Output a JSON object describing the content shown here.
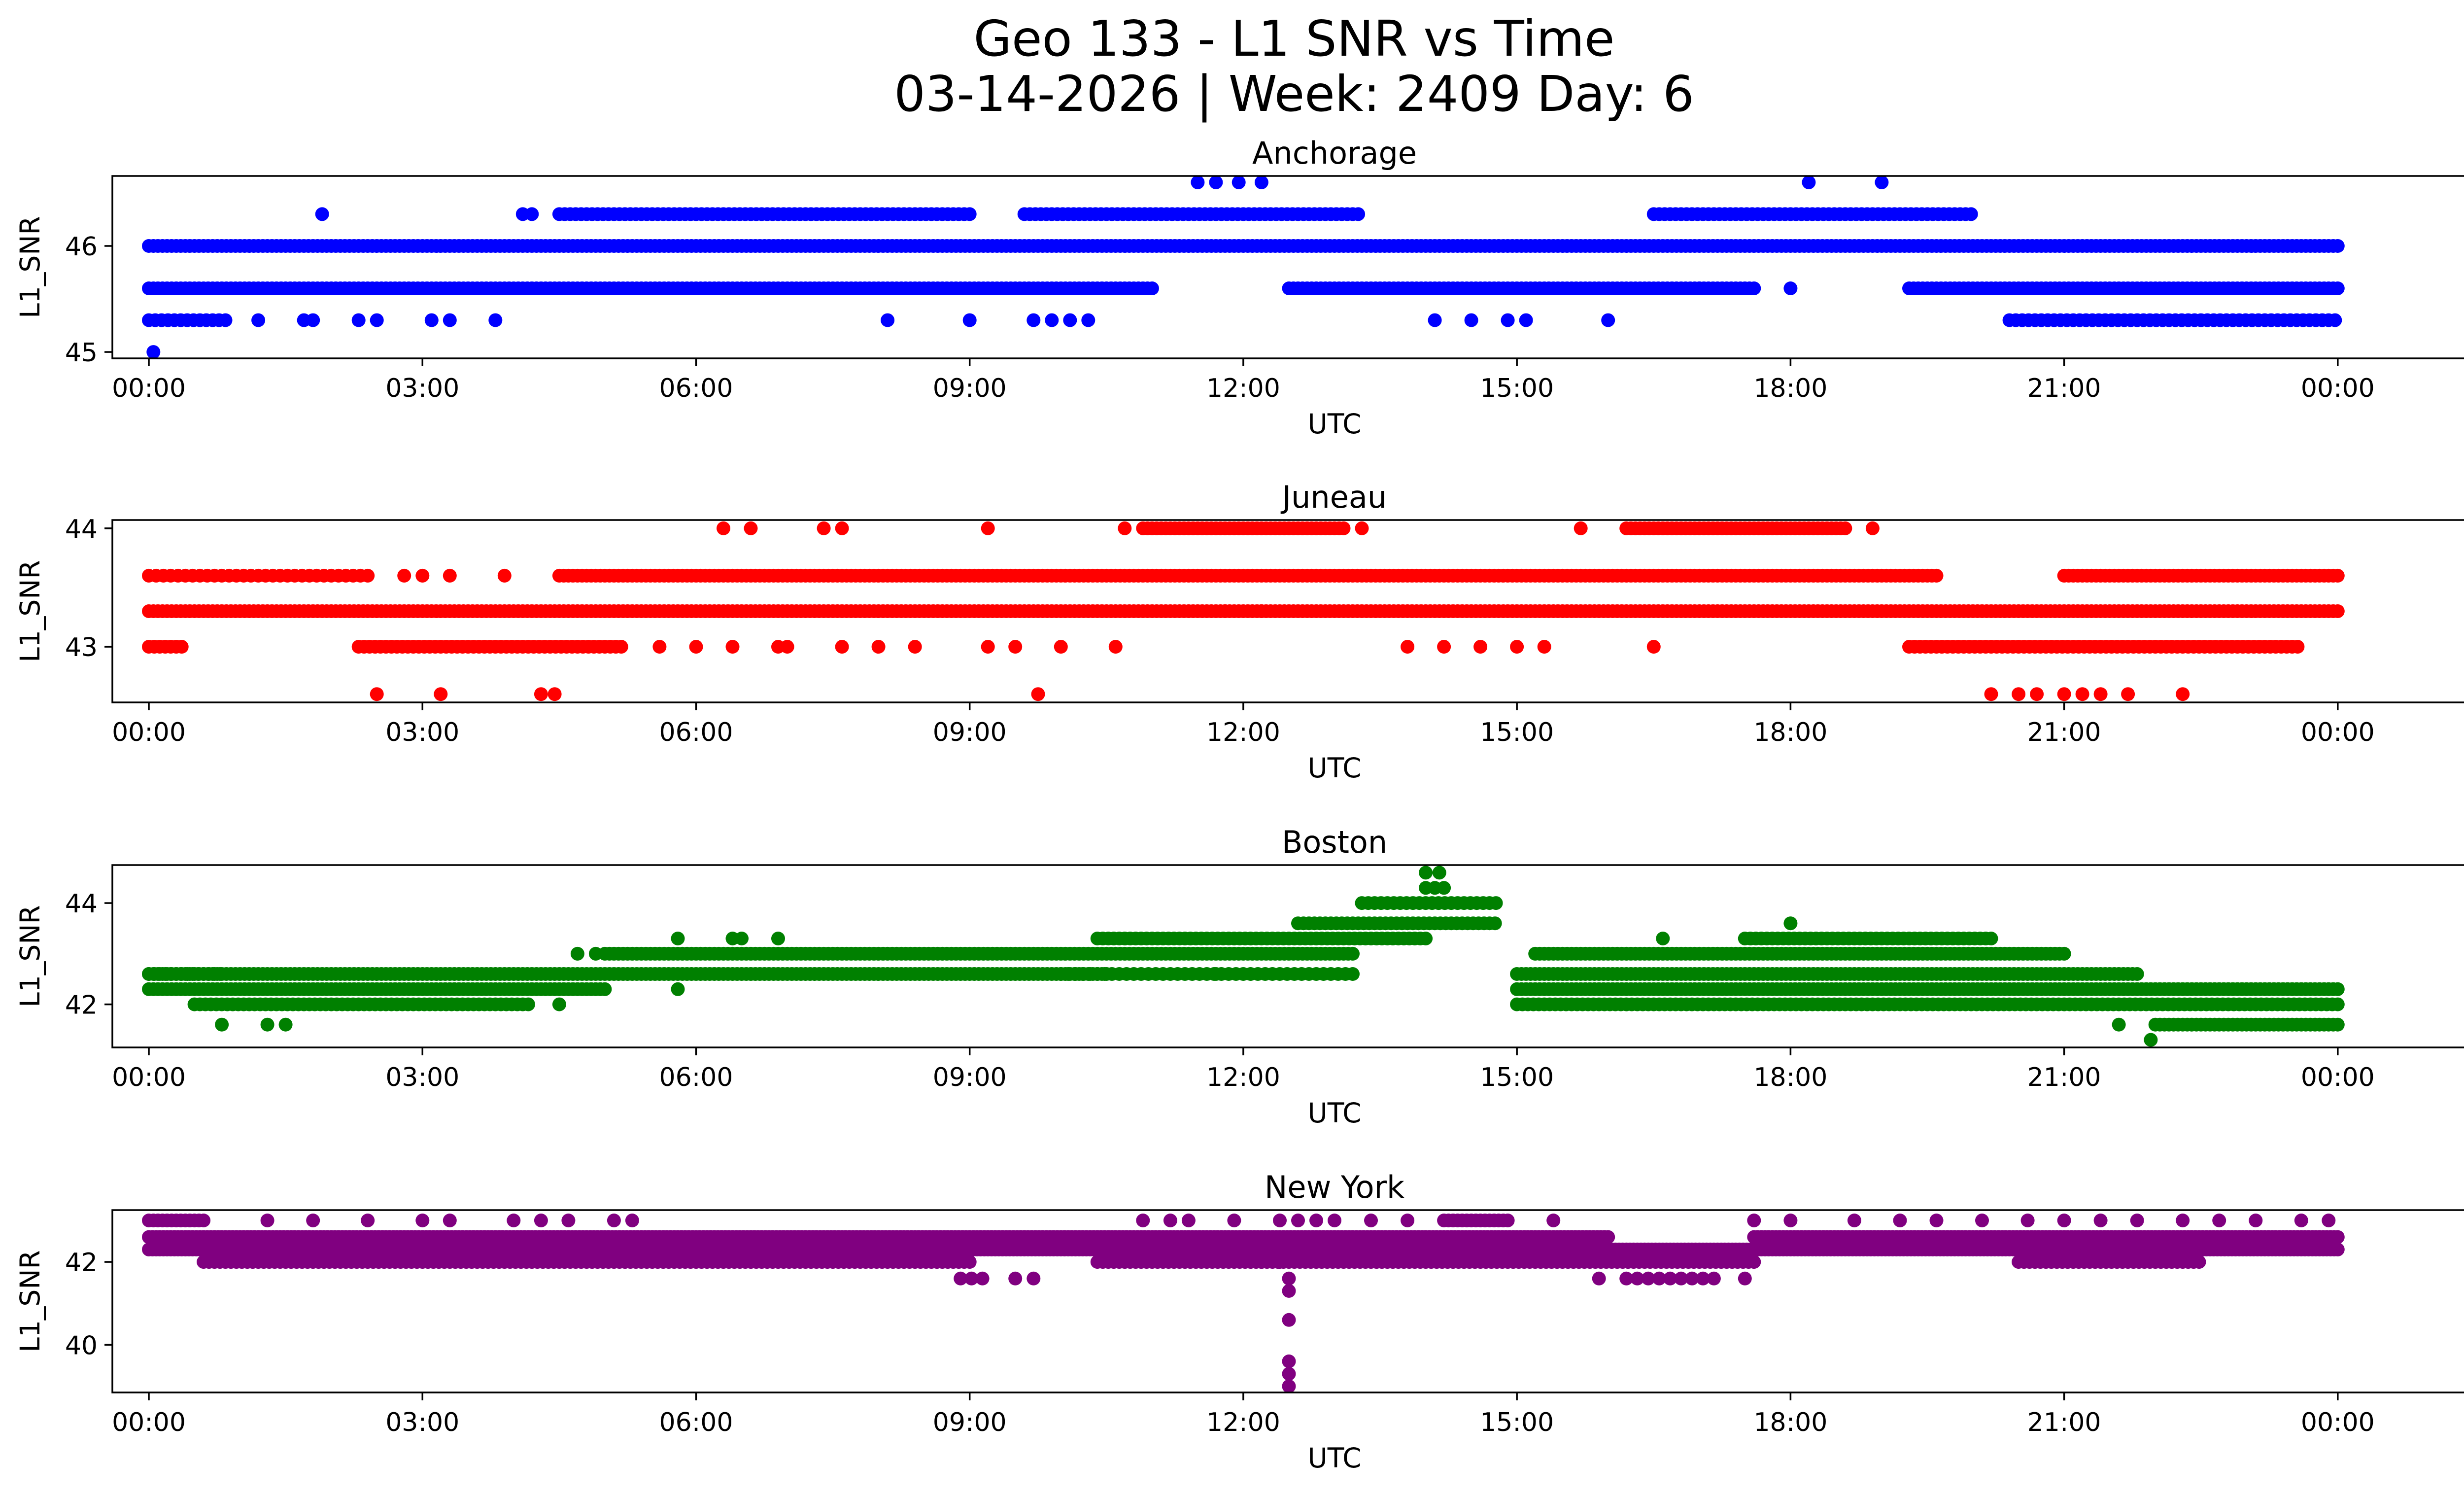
{
  "figure": {
    "title_line1": "Geo 133 - L1 SNR vs Time",
    "title_line2": "03-14-2026 | Week: 2409 Day: 6"
  },
  "chart_data": [
    {
      "type": "scatter",
      "title": "Anchorage",
      "xlabel": "UTC",
      "ylabel": "L1_SNR",
      "color": "#0000ff",
      "xlim": [
        -0.4,
        26.4
      ],
      "ylim": [
        44.94,
        46.66
      ],
      "x_ticks": [
        0,
        3,
        6,
        9,
        12,
        15,
        18,
        21,
        24
      ],
      "x_tick_labels": [
        "00:00",
        "03:00",
        "06:00",
        "09:00",
        "12:00",
        "15:00",
        "18:00",
        "21:00",
        "00:00"
      ],
      "y_ticks": [
        45,
        46
      ],
      "y_tick_labels": [
        "45",
        "46"
      ],
      "bands": [
        {
          "y": 46.0,
          "ranges": [
            [
              0.0,
              24.0
            ]
          ],
          "missing": [],
          "step": 0.05
        },
        {
          "y": 45.6,
          "ranges": [
            [
              0.0,
              11.0
            ],
            [
              12.5,
              17.6
            ],
            [
              19.3,
              24.0
            ]
          ],
          "missing": [],
          "step": 0.05
        },
        {
          "y": 46.3,
          "ranges": [
            [
              4.5,
              9.0
            ],
            [
              9.6,
              13.3
            ],
            [
              16.5,
              20.0
            ]
          ],
          "missing": [],
          "step": 0.06
        },
        {
          "y": 45.3,
          "ranges": [
            [
              0.0,
              0.9
            ],
            [
              20.4,
              24.0
            ]
          ],
          "missing": [],
          "step": 0.07
        }
      ],
      "points": [
        {
          "x": 0.05,
          "y": 45.0
        },
        {
          "x": 1.9,
          "y": 46.3
        },
        {
          "x": 4.1,
          "y": 46.3
        },
        {
          "x": 4.2,
          "y": 46.3
        },
        {
          "x": 1.2,
          "y": 45.3
        },
        {
          "x": 1.7,
          "y": 45.3
        },
        {
          "x": 1.8,
          "y": 45.3
        },
        {
          "x": 2.3,
          "y": 45.3
        },
        {
          "x": 2.5,
          "y": 45.3
        },
        {
          "x": 3.1,
          "y": 45.3
        },
        {
          "x": 3.3,
          "y": 45.3
        },
        {
          "x": 3.8,
          "y": 45.3
        },
        {
          "x": 8.1,
          "y": 45.3
        },
        {
          "x": 9.0,
          "y": 45.3
        },
        {
          "x": 9.7,
          "y": 45.3
        },
        {
          "x": 9.9,
          "y": 45.3
        },
        {
          "x": 10.1,
          "y": 45.3
        },
        {
          "x": 10.3,
          "y": 45.3
        },
        {
          "x": 14.1,
          "y": 45.3
        },
        {
          "x": 14.5,
          "y": 45.3
        },
        {
          "x": 14.9,
          "y": 45.3
        },
        {
          "x": 15.1,
          "y": 45.3
        },
        {
          "x": 16.0,
          "y": 45.3
        },
        {
          "x": 11.5,
          "y": 46.6
        },
        {
          "x": 11.7,
          "y": 46.6
        },
        {
          "x": 11.95,
          "y": 46.6
        },
        {
          "x": 12.2,
          "y": 46.6
        },
        {
          "x": 18.2,
          "y": 46.6
        },
        {
          "x": 19.0,
          "y": 46.6
        },
        {
          "x": 17.0,
          "y": 45.6
        },
        {
          "x": 18.0,
          "y": 45.6
        }
      ]
    },
    {
      "type": "scatter",
      "title": "Juneau",
      "xlabel": "UTC",
      "ylabel": "L1_SNR",
      "color": "#ff0000",
      "xlim": [
        -0.4,
        26.4
      ],
      "ylim": [
        42.53,
        44.07
      ],
      "x_ticks": [
        0,
        3,
        6,
        9,
        12,
        15,
        18,
        21,
        24
      ],
      "x_tick_labels": [
        "00:00",
        "03:00",
        "06:00",
        "09:00",
        "12:00",
        "15:00",
        "18:00",
        "21:00",
        "00:00"
      ],
      "y_ticks": [
        43,
        44
      ],
      "y_tick_labels": [
        "43",
        "44"
      ],
      "bands": [
        {
          "y": 43.3,
          "ranges": [
            [
              0.0,
              24.0
            ]
          ],
          "missing": [],
          "step": 0.05
        },
        {
          "y": 43.6,
          "ranges": [
            [
              4.5,
              19.6
            ],
            [
              21.0,
              24.0
            ]
          ],
          "missing": [],
          "step": 0.05
        },
        {
          "y": 43.0,
          "ranges": [
            [
              0.0,
              0.4
            ],
            [
              2.3,
              5.2
            ],
            [
              19.3,
              23.6
            ]
          ],
          "missing": [],
          "step": 0.06
        },
        {
          "y": 44.0,
          "ranges": [
            [
              10.9,
              13.1
            ],
            [
              16.2,
              18.6
            ]
          ],
          "missing": [],
          "step": 0.05
        },
        {
          "y": 43.6,
          "ranges": [
            [
              0.0,
              2.4
            ]
          ],
          "missing": [],
          "step": 0.08
        }
      ],
      "points": [
        {
          "x": 2.5,
          "y": 42.6
        },
        {
          "x": 3.2,
          "y": 42.6
        },
        {
          "x": 4.3,
          "y": 42.6
        },
        {
          "x": 4.45,
          "y": 42.6
        },
        {
          "x": 9.75,
          "y": 42.6
        },
        {
          "x": 20.2,
          "y": 42.6
        },
        {
          "x": 20.5,
          "y": 42.6
        },
        {
          "x": 20.7,
          "y": 42.6
        },
        {
          "x": 21.0,
          "y": 42.6
        },
        {
          "x": 21.2,
          "y": 42.6
        },
        {
          "x": 21.4,
          "y": 42.6
        },
        {
          "x": 21.7,
          "y": 42.6
        },
        {
          "x": 22.3,
          "y": 42.6
        },
        {
          "x": 6.3,
          "y": 44.0
        },
        {
          "x": 6.6,
          "y": 44.0
        },
        {
          "x": 7.4,
          "y": 44.0
        },
        {
          "x": 7.6,
          "y": 44.0
        },
        {
          "x": 9.2,
          "y": 44.0
        },
        {
          "x": 10.7,
          "y": 44.0
        },
        {
          "x": 13.3,
          "y": 44.0
        },
        {
          "x": 15.7,
          "y": 44.0
        },
        {
          "x": 18.9,
          "y": 44.0
        },
        {
          "x": 2.8,
          "y": 43.6
        },
        {
          "x": 3.0,
          "y": 43.6
        },
        {
          "x": 3.3,
          "y": 43.6
        },
        {
          "x": 3.9,
          "y": 43.6
        },
        {
          "x": 5.6,
          "y": 43.0
        },
        {
          "x": 6.0,
          "y": 43.0
        },
        {
          "x": 6.4,
          "y": 43.0
        },
        {
          "x": 6.9,
          "y": 43.0
        },
        {
          "x": 7.0,
          "y": 43.0
        },
        {
          "x": 7.6,
          "y": 43.0
        },
        {
          "x": 8.0,
          "y": 43.0
        },
        {
          "x": 8.4,
          "y": 43.0
        },
        {
          "x": 9.2,
          "y": 43.0
        },
        {
          "x": 9.5,
          "y": 43.0
        },
        {
          "x": 10.0,
          "y": 43.0
        },
        {
          "x": 10.6,
          "y": 43.0
        },
        {
          "x": 13.8,
          "y": 43.0
        },
        {
          "x": 14.2,
          "y": 43.0
        },
        {
          "x": 14.6,
          "y": 43.0
        },
        {
          "x": 15.0,
          "y": 43.0
        },
        {
          "x": 15.3,
          "y": 43.0
        },
        {
          "x": 16.5,
          "y": 43.0
        },
        {
          "x": 11.8,
          "y": 43.3
        },
        {
          "x": 12.2,
          "y": 43.3
        }
      ]
    },
    {
      "type": "scatter",
      "title": "Boston",
      "xlabel": "UTC",
      "ylabel": "L1_SNR",
      "color": "#008000",
      "xlim": [
        -0.4,
        26.4
      ],
      "ylim": [
        41.15,
        44.75
      ],
      "x_ticks": [
        0,
        3,
        6,
        9,
        12,
        15,
        18,
        21,
        24
      ],
      "x_tick_labels": [
        "00:00",
        "03:00",
        "06:00",
        "09:00",
        "12:00",
        "15:00",
        "18:00",
        "21:00",
        "00:00"
      ],
      "y_ticks": [
        42,
        44
      ],
      "y_tick_labels": [
        "42",
        "44"
      ],
      "bands": [
        {
          "y": 42.3,
          "ranges": [
            [
              0.0,
              5.0
            ],
            [
              15.0,
              24.0
            ]
          ],
          "missing": [],
          "step": 0.05
        },
        {
          "y": 42.6,
          "ranges": [
            [
              0.0,
              10.5
            ],
            [
              15.0,
              21.8
            ]
          ],
          "missing": [],
          "step": 0.05
        },
        {
          "y": 42.0,
          "ranges": [
            [
              0.5,
              4.2
            ],
            [
              15.0,
              24.0
            ]
          ],
          "missing": [],
          "step": 0.06
        },
        {
          "y": 43.0,
          "ranges": [
            [
              5.0,
              13.2
            ],
            [
              15.2,
              21.0
            ]
          ],
          "missing": [],
          "step": 0.05
        },
        {
          "y": 43.3,
          "ranges": [
            [
              10.4,
              14.0
            ],
            [
              17.5,
              20.2
            ]
          ],
          "missing": [],
          "step": 0.06
        },
        {
          "y": 42.6,
          "ranges": [
            [
              10.0,
              13.2
            ]
          ],
          "missing": [],
          "step": 0.08
        },
        {
          "y": 43.6,
          "ranges": [
            [
              12.6,
              14.8
            ]
          ],
          "missing": [],
          "step": 0.06
        },
        {
          "y": 44.0,
          "ranges": [
            [
              13.3,
              14.8
            ]
          ],
          "missing": [],
          "step": 0.07
        },
        {
          "y": 41.6,
          "ranges": [
            [
              22.0,
              24.0
            ]
          ],
          "missing": [],
          "step": 0.05
        },
        {
          "y": 42.6,
          "ranges": [
            [
              0.0,
              0.8
            ]
          ],
          "missing": [],
          "step": 0.06
        }
      ],
      "points": [
        {
          "x": 0.8,
          "y": 41.6
        },
        {
          "x": 1.3,
          "y": 41.6
        },
        {
          "x": 1.5,
          "y": 41.6
        },
        {
          "x": 21.6,
          "y": 41.6
        },
        {
          "x": 21.95,
          "y": 41.3
        },
        {
          "x": 14.0,
          "y": 44.3
        },
        {
          "x": 14.1,
          "y": 44.3
        },
        {
          "x": 14.2,
          "y": 44.3
        },
        {
          "x": 14.0,
          "y": 44.6
        },
        {
          "x": 14.15,
          "y": 44.6
        },
        {
          "x": 5.8,
          "y": 43.3
        },
        {
          "x": 6.4,
          "y": 43.3
        },
        {
          "x": 6.5,
          "y": 43.3
        },
        {
          "x": 6.9,
          "y": 43.3
        },
        {
          "x": 16.6,
          "y": 43.3
        },
        {
          "x": 18.0,
          "y": 43.6
        },
        {
          "x": 4.7,
          "y": 43.0
        },
        {
          "x": 4.9,
          "y": 43.0
        },
        {
          "x": 11.7,
          "y": 42.6
        },
        {
          "x": 5.8,
          "y": 42.3
        },
        {
          "x": 4.5,
          "y": 42.0
        }
      ]
    },
    {
      "type": "scatter",
      "title": "New York",
      "xlabel": "UTC",
      "ylabel": "L1_SNR",
      "color": "#800080",
      "xlim": [
        -0.4,
        26.4
      ],
      "ylim": [
        38.85,
        43.25
      ],
      "x_ticks": [
        0,
        3,
        6,
        9,
        12,
        15,
        18,
        21,
        24
      ],
      "x_tick_labels": [
        "00:00",
        "03:00",
        "06:00",
        "09:00",
        "12:00",
        "15:00",
        "18:00",
        "21:00",
        "00:00"
      ],
      "y_ticks": [
        40,
        42
      ],
      "y_tick_labels": [
        "40",
        "42"
      ],
      "bands": [
        {
          "y": 42.6,
          "ranges": [
            [
              0.0,
              16.0
            ],
            [
              17.6,
              24.0
            ]
          ],
          "missing": [],
          "step": 0.04
        },
        {
          "y": 42.3,
          "ranges": [
            [
              0.0,
              24.0
            ]
          ],
          "missing": [],
          "step": 0.04
        },
        {
          "y": 42.0,
          "ranges": [
            [
              0.6,
              9.0
            ],
            [
              10.4,
              17.6
            ],
            [
              20.5,
              22.5
            ]
          ],
          "missing": [],
          "step": 0.06
        },
        {
          "y": 43.0,
          "ranges": [
            [
              0.0,
              0.6
            ],
            [
              14.2,
              14.9
            ]
          ],
          "missing": [],
          "step": 0.05
        },
        {
          "y": 41.6,
          "ranges": [
            [
              8.9,
              9.2
            ],
            [
              16.2,
              17.2
            ]
          ],
          "missing": [],
          "step": 0.12
        }
      ],
      "points": [
        {
          "x": 1.3,
          "y": 43.0
        },
        {
          "x": 1.8,
          "y": 43.0
        },
        {
          "x": 2.4,
          "y": 43.0
        },
        {
          "x": 3.0,
          "y": 43.0
        },
        {
          "x": 3.3,
          "y": 43.0
        },
        {
          "x": 4.0,
          "y": 43.0
        },
        {
          "x": 4.3,
          "y": 43.0
        },
        {
          "x": 4.6,
          "y": 43.0
        },
        {
          "x": 5.1,
          "y": 43.0
        },
        {
          "x": 5.3,
          "y": 43.0
        },
        {
          "x": 10.9,
          "y": 43.0
        },
        {
          "x": 11.2,
          "y": 43.0
        },
        {
          "x": 11.4,
          "y": 43.0
        },
        {
          "x": 11.9,
          "y": 43.0
        },
        {
          "x": 12.4,
          "y": 43.0
        },
        {
          "x": 12.6,
          "y": 43.0
        },
        {
          "x": 12.8,
          "y": 43.0
        },
        {
          "x": 13.0,
          "y": 43.0
        },
        {
          "x": 13.4,
          "y": 43.0
        },
        {
          "x": 13.8,
          "y": 43.0
        },
        {
          "x": 15.4,
          "y": 43.0
        },
        {
          "x": 17.6,
          "y": 43.0
        },
        {
          "x": 18.0,
          "y": 43.0
        },
        {
          "x": 18.7,
          "y": 43.0
        },
        {
          "x": 19.2,
          "y": 43.0
        },
        {
          "x": 19.6,
          "y": 43.0
        },
        {
          "x": 20.1,
          "y": 43.0
        },
        {
          "x": 20.6,
          "y": 43.0
        },
        {
          "x": 21.0,
          "y": 43.0
        },
        {
          "x": 21.4,
          "y": 43.0
        },
        {
          "x": 21.8,
          "y": 43.0
        },
        {
          "x": 22.3,
          "y": 43.0
        },
        {
          "x": 22.7,
          "y": 43.0
        },
        {
          "x": 23.1,
          "y": 43.0
        },
        {
          "x": 23.6,
          "y": 43.0
        },
        {
          "x": 23.9,
          "y": 43.0
        },
        {
          "x": 9.5,
          "y": 41.6
        },
        {
          "x": 9.7,
          "y": 41.6
        },
        {
          "x": 15.9,
          "y": 41.6
        },
        {
          "x": 17.5,
          "y": 41.6
        },
        {
          "x": 12.2,
          "y": 42.0
        },
        {
          "x": 12.4,
          "y": 42.0
        },
        {
          "x": 12.5,
          "y": 41.6
        },
        {
          "x": 12.5,
          "y": 41.3
        },
        {
          "x": 12.5,
          "y": 40.6
        },
        {
          "x": 12.5,
          "y": 39.6
        },
        {
          "x": 12.5,
          "y": 39.3
        },
        {
          "x": 12.5,
          "y": 39.0
        }
      ]
    }
  ]
}
